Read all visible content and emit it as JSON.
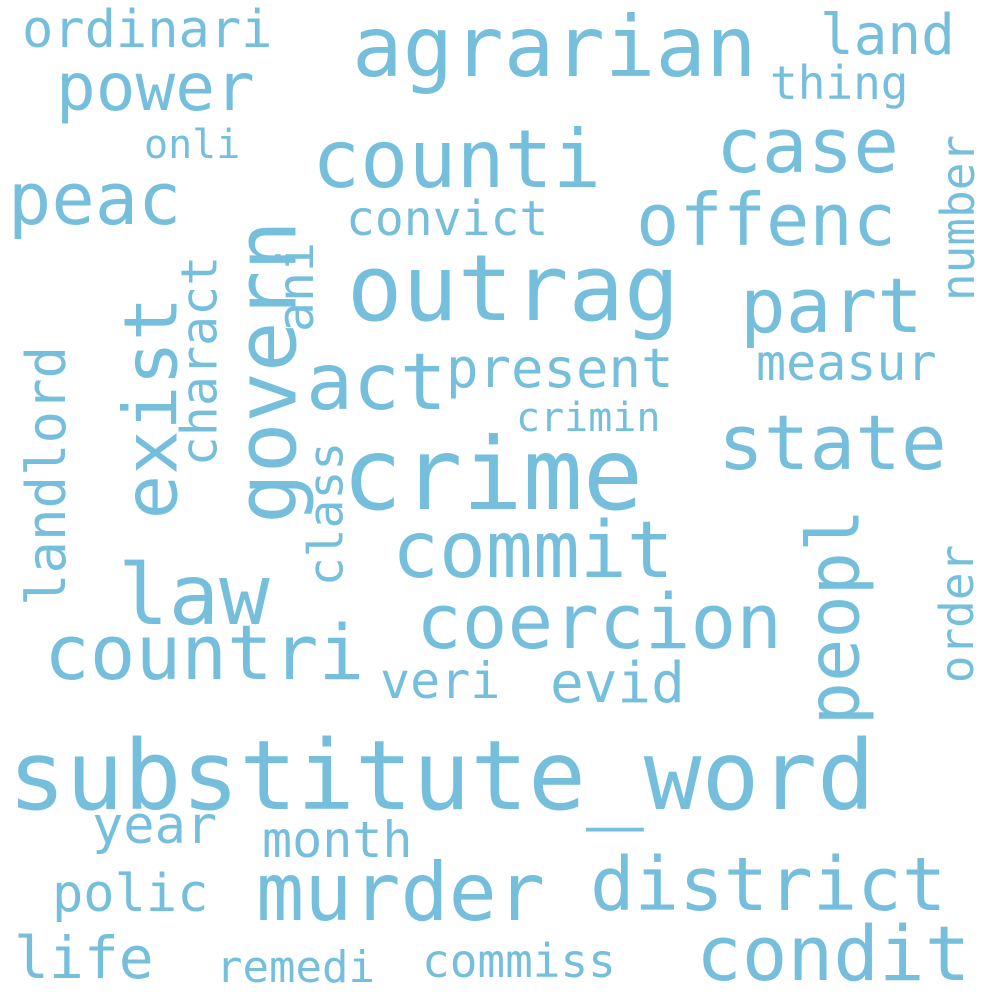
{
  "palette": {
    "word_color": "#76bfdc",
    "background": "#ffffff"
  },
  "words": [
    "substitute_word",
    "crime",
    "outrag",
    "agrarian",
    "govern",
    "counti",
    "murder",
    "commit",
    "coercion",
    "countri",
    "district",
    "condit",
    "case",
    "offenc",
    "state",
    "part",
    "law",
    "act",
    "power",
    "peac",
    "exist",
    "peopl",
    "present",
    "convict",
    "measur",
    "charact",
    "landlord",
    "class",
    "number",
    "order",
    "ani",
    "crimin",
    "year",
    "month",
    "polic",
    "life",
    "remedi",
    "commiss",
    "veri",
    "evid",
    "ordinari",
    "land",
    "thing",
    "onli"
  ]
}
